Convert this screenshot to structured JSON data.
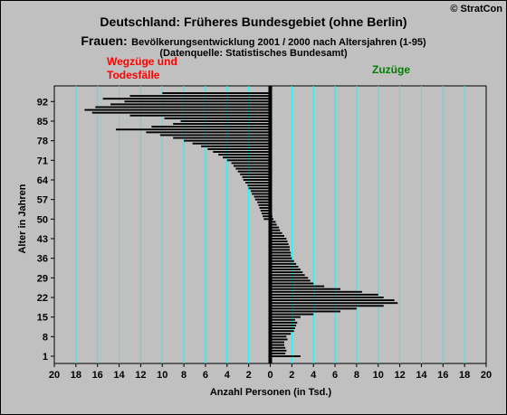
{
  "copyright": "© StratCon",
  "title": "Deutschland: Früheres Bundesgebiet (ohne Berlin)",
  "subtitle_prefix": "Frauen:",
  "subtitle": "Bevölkerungsentwicklung 2001 / 2000 nach Altersjahren (1-95)",
  "source": "(Datenquelle: Statistisches Bundesamt)",
  "colors": {
    "background": "#c0c0c0",
    "gridline": "#00ffff",
    "bar": "#000000",
    "left_label": "#ff0000",
    "right_label": "#008000"
  },
  "chart_data": {
    "type": "bar",
    "orientation": "horizontal",
    "ylabel": "Alter in Jahren",
    "xlabel": "Anzahl Personen (in Tsd.)",
    "y_ticks": [
      1,
      8,
      15,
      22,
      29,
      36,
      43,
      50,
      57,
      64,
      71,
      78,
      85,
      92
    ],
    "ylim": [
      1,
      95
    ],
    "x_ticks": [
      "20",
      "18",
      "16",
      "14",
      "12",
      "10",
      "8",
      "6",
      "4",
      "2",
      "0",
      "2",
      "4",
      "6",
      "8",
      "10",
      "12",
      "14",
      "16",
      "18",
      "20"
    ],
    "xlim": [
      -20,
      20
    ],
    "grid": true,
    "series": [
      {
        "name": "Wegzüge und Todesfälle",
        "side": "left",
        "ages": [
          50,
          51,
          52,
          53,
          54,
          55,
          56,
          57,
          58,
          59,
          60,
          61,
          62,
          63,
          64,
          65,
          66,
          67,
          68,
          69,
          70,
          71,
          72,
          73,
          74,
          75,
          76,
          77,
          78,
          79,
          80,
          81,
          82,
          83,
          84,
          85,
          86,
          87,
          88,
          89,
          90,
          91,
          92,
          93,
          94,
          95
        ],
        "values": [
          0.6,
          0.7,
          0.8,
          0.9,
          1.0,
          1.1,
          1.2,
          1.4,
          1.5,
          1.7,
          1.8,
          2.0,
          2.1,
          2.3,
          2.5,
          2.6,
          2.8,
          3.0,
          3.2,
          3.4,
          3.6,
          4.0,
          4.4,
          4.8,
          5.3,
          5.8,
          6.4,
          7.2,
          8.0,
          9.0,
          10.2,
          11.5,
          14.3,
          11.0,
          9.0,
          8.3,
          9.8,
          13.0,
          16.5,
          17.2,
          16.2,
          14.8,
          13.5,
          15.5,
          13.0,
          10.0
        ]
      },
      {
        "name": "Zuzüge",
        "side": "right",
        "ages": [
          1,
          2,
          3,
          4,
          5,
          6,
          7,
          8,
          9,
          10,
          11,
          12,
          13,
          14,
          15,
          16,
          17,
          18,
          19,
          20,
          21,
          22,
          23,
          24,
          25,
          26,
          27,
          28,
          29,
          30,
          31,
          32,
          33,
          34,
          35,
          36,
          37,
          38,
          39,
          40,
          41,
          42,
          43,
          44,
          45,
          46,
          47,
          48,
          49,
          50,
          51
        ],
        "values": [
          2.8,
          1.4,
          1.5,
          1.4,
          1.3,
          1.3,
          1.6,
          1.5,
          1.9,
          2.2,
          2.3,
          2.4,
          2.5,
          2.3,
          2.8,
          4.0,
          6.5,
          8.0,
          10.5,
          11.8,
          11.5,
          10.5,
          10.0,
          8.5,
          6.5,
          5.0,
          4.0,
          3.7,
          3.5,
          3.2,
          3.0,
          2.8,
          2.6,
          2.4,
          2.2,
          2.0,
          1.9,
          1.9,
          1.8,
          1.8,
          1.7,
          1.6,
          1.5,
          1.3,
          1.1,
          0.9,
          0.8,
          0.6,
          0.5,
          0.3,
          0.2
        ]
      }
    ]
  }
}
